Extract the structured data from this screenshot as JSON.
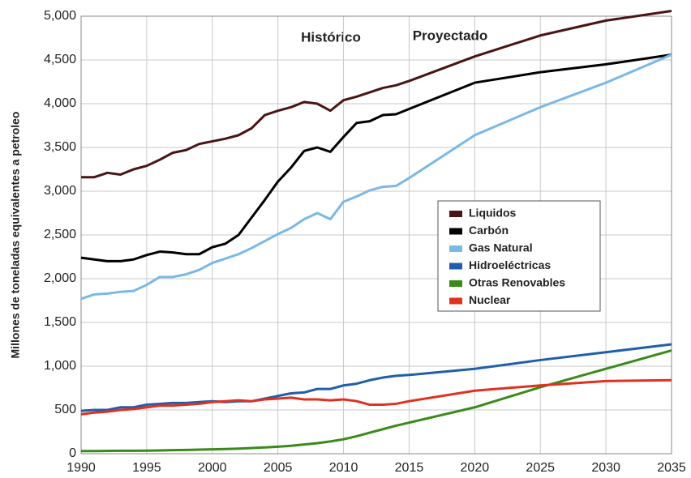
{
  "chart_data": {
    "type": "line",
    "ylabel": "Millones de toneladas equivalentes a petroleo",
    "annotations": [
      "Histórico",
      "Proyectado"
    ],
    "x": [
      1990,
      1991,
      1992,
      1993,
      1994,
      1995,
      1996,
      1997,
      1998,
      1999,
      2000,
      2001,
      2002,
      2003,
      2004,
      2005,
      2006,
      2007,
      2008,
      2009,
      2010,
      2011,
      2012,
      2013,
      2014,
      2015,
      2020,
      2025,
      2030,
      2035
    ],
    "series": [
      {
        "name": "Liquidos",
        "color": "#4a1414",
        "values": [
          3160,
          3160,
          3210,
          3190,
          3250,
          3290,
          3360,
          3440,
          3470,
          3540,
          3570,
          3600,
          3640,
          3720,
          3870,
          3920,
          3960,
          4020,
          4000,
          3920,
          4040,
          4080,
          4130,
          4180,
          4210,
          4260,
          4540,
          4780,
          4950,
          5060
        ]
      },
      {
        "name": "Carbón",
        "color": "#000000",
        "values": [
          2240,
          2220,
          2200,
          2200,
          2220,
          2270,
          2310,
          2300,
          2280,
          2280,
          2360,
          2400,
          2500,
          2700,
          2900,
          3110,
          3270,
          3460,
          3500,
          3450,
          3620,
          3780,
          3800,
          3870,
          3880,
          3940,
          4240,
          4360,
          4450,
          4560
        ]
      },
      {
        "name": "Gas Natural",
        "color": "#7ab8e6",
        "values": [
          1770,
          1820,
          1830,
          1850,
          1860,
          1930,
          2020,
          2020,
          2050,
          2100,
          2180,
          2230,
          2280,
          2350,
          2430,
          2510,
          2580,
          2680,
          2750,
          2680,
          2880,
          2940,
          3010,
          3050,
          3060,
          3150,
          3640,
          3960,
          4240,
          4560
        ]
      },
      {
        "name": "Hidroeléctricas",
        "color": "#1f5faa",
        "values": [
          490,
          500,
          500,
          530,
          530,
          560,
          570,
          580,
          580,
          590,
          600,
          590,
          600,
          600,
          630,
          660,
          690,
          700,
          740,
          740,
          780,
          800,
          840,
          870,
          890,
          900,
          970,
          1070,
          1160,
          1250
        ]
      },
      {
        "name": "Otras Renovables",
        "color": "#3a8a1a",
        "values": [
          30,
          30,
          32,
          33,
          34,
          35,
          37,
          40,
          43,
          46,
          50,
          53,
          58,
          65,
          72,
          80,
          90,
          105,
          120,
          140,
          165,
          200,
          240,
          280,
          320,
          355,
          530,
          760,
          970,
          1180
        ]
      },
      {
        "name": "Nuclear",
        "color": "#e03020",
        "values": [
          450,
          470,
          480,
          500,
          510,
          530,
          550,
          550,
          560,
          570,
          590,
          600,
          610,
          600,
          620,
          630,
          640,
          620,
          620,
          610,
          620,
          600,
          560,
          560,
          570,
          600,
          720,
          780,
          830,
          840
        ]
      }
    ],
    "xlim": [
      1990,
      2035
    ],
    "xticks": [
      1990,
      1995,
      2000,
      2005,
      2010,
      2015,
      2020,
      2025,
      2030,
      2035
    ],
    "ylim": [
      0,
      5000
    ],
    "yticks": [
      0,
      500,
      {
        "value": 1000,
        "label": "1,000"
      },
      {
        "value": 1500,
        "label": "1,500"
      },
      {
        "value": 2000,
        "label": "2,000"
      },
      {
        "value": 2500,
        "label": "2,500"
      },
      {
        "value": 3000,
        "label": "3,000"
      },
      {
        "value": 3500,
        "label": "3,500"
      },
      {
        "value": 4000,
        "label": "4,000"
      },
      {
        "value": 4500,
        "label": "4,500"
      },
      {
        "value": 5000,
        "label": "5,000"
      }
    ],
    "grid": true,
    "legend": "right"
  }
}
